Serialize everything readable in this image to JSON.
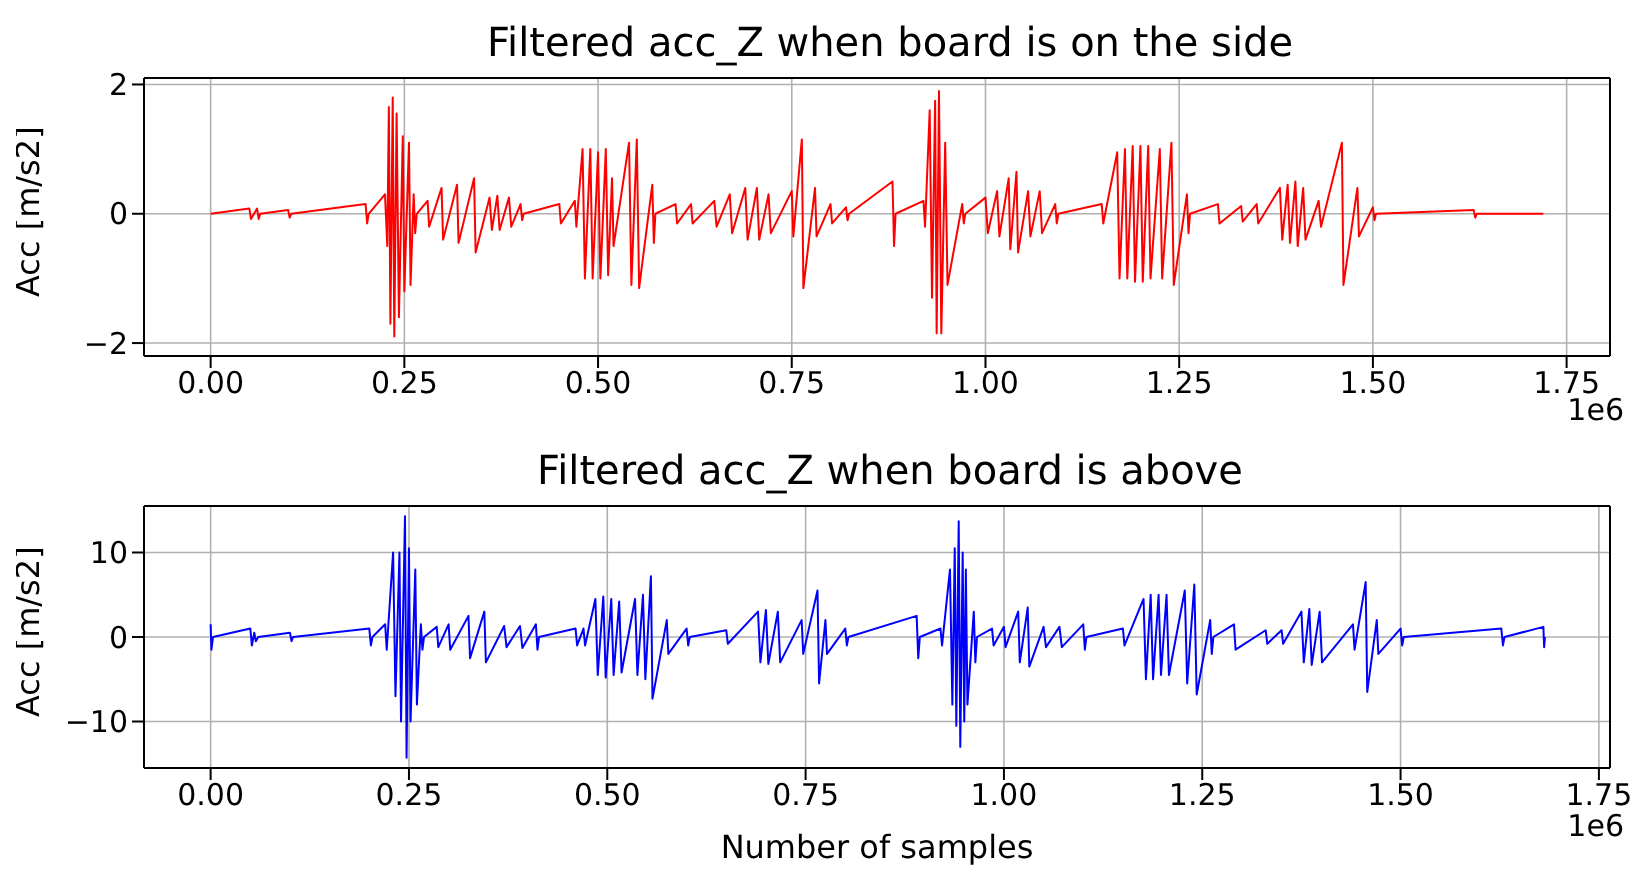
{
  "chart_data": [
    {
      "type": "line",
      "title": "Filtered acc_Z when board is on the side",
      "ylabel": "Acc [m/s2]",
      "annotations": [
        "1e6"
      ],
      "grid": true,
      "legend": false,
      "xlim": [
        -0.086,
        1.806
      ],
      "xticks": [
        {
          "value": 0,
          "label": "0.00"
        },
        {
          "value": 0.25,
          "label": "0.25"
        },
        {
          "value": 0.5,
          "label": "0.50"
        },
        {
          "value": 0.75,
          "label": "0.75"
        },
        {
          "value": 1,
          "label": "1.00"
        },
        {
          "value": 1.25,
          "label": "1.25"
        },
        {
          "value": 1.5,
          "label": "1.50"
        },
        {
          "value": 1.75,
          "label": "1.75"
        }
      ],
      "ylim": [
        -2.2,
        2.1
      ],
      "yticks": [
        {
          "value": -2,
          "label": "−2"
        },
        0,
        2
      ],
      "series": [
        {
          "color": "#ff0000",
          "x": [
            0,
            0.05,
            0.052,
            0.06,
            0.062,
            0.064,
            0.1,
            0.102,
            0.104,
            0.2,
            0.202,
            0.204,
            0.225,
            0.228,
            0.23,
            0.232,
            0.235,
            0.237,
            0.24,
            0.243,
            0.248,
            0.25,
            0.256,
            0.258,
            0.262,
            0.264,
            0.266,
            0.28,
            0.282,
            0.298,
            0.3,
            0.318,
            0.32,
            0.34,
            0.342,
            0.36,
            0.363,
            0.37,
            0.373,
            0.385,
            0.388,
            0.4,
            0.402,
            0.404,
            0.45,
            0.452,
            0.47,
            0.472,
            0.48,
            0.483,
            0.49,
            0.493,
            0.5,
            0.503,
            0.51,
            0.513,
            0.518,
            0.52,
            0.54,
            0.543,
            0.55,
            0.553,
            0.57,
            0.572,
            0.574,
            0.6,
            0.602,
            0.62,
            0.622,
            0.65,
            0.653,
            0.67,
            0.673,
            0.69,
            0.693,
            0.705,
            0.708,
            0.72,
            0.723,
            0.75,
            0.752,
            0.763,
            0.765,
            0.78,
            0.782,
            0.8,
            0.802,
            0.82,
            0.822,
            0.824,
            0.88,
            0.882,
            0.884,
            0.92,
            0.922,
            0.928,
            0.931,
            0.935,
            0.937,
            0.94,
            0.943,
            0.948,
            0.951,
            0.97,
            0.972,
            0.974,
            1.0,
            1.003,
            1.015,
            1.018,
            1.03,
            1.032,
            1.04,
            1.042,
            1.055,
            1.058,
            1.07,
            1.073,
            1.09,
            1.092,
            1.094,
            1.15,
            1.152,
            1.17,
            1.173,
            1.18,
            1.183,
            1.19,
            1.193,
            1.2,
            1.203,
            1.21,
            1.213,
            1.225,
            1.228,
            1.24,
            1.243,
            1.26,
            1.262,
            1.264,
            1.3,
            1.302,
            1.33,
            1.332,
            1.35,
            1.352,
            1.38,
            1.383,
            1.39,
            1.393,
            1.4,
            1.403,
            1.41,
            1.413,
            1.43,
            1.433,
            1.46,
            1.462,
            1.48,
            1.482,
            1.5,
            1.502,
            1.504,
            1.63,
            1.632,
            1.634,
            1.72
          ],
          "values": [
            0,
            0.08,
            -0.08,
            0.08,
            -0.08,
            0,
            0.06,
            -0.06,
            0,
            0.15,
            -0.15,
            0,
            0.3,
            -0.5,
            1.65,
            -1.7,
            1.8,
            -1.9,
            1.55,
            -1.6,
            1.2,
            -1.2,
            1.1,
            -1.1,
            0.3,
            -0.3,
            0,
            0.2,
            -0.2,
            0.4,
            -0.4,
            0.45,
            -0.45,
            0.55,
            -0.6,
            0.25,
            -0.25,
            0.28,
            -0.25,
            0.25,
            -0.2,
            0.15,
            -0.1,
            0,
            0.15,
            -0.15,
            0.2,
            -0.2,
            1.0,
            -1.0,
            1.0,
            -1.0,
            0.95,
            -1.0,
            1.0,
            -0.95,
            0.55,
            -0.5,
            1.1,
            -1.1,
            1.15,
            -1.15,
            0.45,
            -0.45,
            0,
            0.15,
            -0.15,
            0.15,
            -0.15,
            0.2,
            -0.2,
            0.3,
            -0.3,
            0.4,
            -0.4,
            0.4,
            -0.4,
            0.3,
            -0.3,
            0.35,
            -0.35,
            1.15,
            -1.15,
            0.4,
            -0.35,
            0.15,
            -0.15,
            0.1,
            -0.1,
            0,
            0.5,
            -0.5,
            0,
            0.2,
            -0.2,
            1.6,
            -1.3,
            1.75,
            -1.85,
            1.9,
            -1.85,
            1.1,
            -1.1,
            0.15,
            -0.15,
            0,
            0.25,
            -0.3,
            0.35,
            -0.35,
            0.55,
            -0.55,
            0.65,
            -0.6,
            0.35,
            -0.35,
            0.35,
            -0.3,
            0.15,
            -0.15,
            0,
            0.15,
            -0.15,
            0.95,
            -1.0,
            1.0,
            -1.0,
            1.05,
            -1.05,
            1.05,
            -1.05,
            1.05,
            -1.0,
            1.0,
            -1.0,
            1.1,
            -1.1,
            0.3,
            -0.3,
            0,
            0.15,
            -0.15,
            0.12,
            -0.12,
            0.15,
            -0.15,
            0.4,
            -0.4,
            0.45,
            -0.45,
            0.5,
            -0.5,
            0.4,
            -0.4,
            0.2,
            -0.2,
            1.1,
            -1.1,
            0.4,
            -0.35,
            0.1,
            -0.1,
            0,
            0.06,
            -0.06,
            0,
            0
          ]
        }
      ]
    },
    {
      "type": "line",
      "title": "Filtered acc_Z when board is above",
      "xlabel": "Number of samples",
      "ylabel": "Acc [m/s2]",
      "annotations": [
        "1e6"
      ],
      "grid": true,
      "legend": false,
      "xlim": [
        -0.084,
        1.764
      ],
      "xticks": [
        {
          "value": 0,
          "label": "0.00"
        },
        {
          "value": 0.25,
          "label": "0.25"
        },
        {
          "value": 0.5,
          "label": "0.50"
        },
        {
          "value": 0.75,
          "label": "0.75"
        },
        {
          "value": 1,
          "label": "1.00"
        },
        {
          "value": 1.25,
          "label": "1.25"
        },
        {
          "value": 1.5,
          "label": "1.50"
        },
        {
          "value": 1.75,
          "label": "1.75"
        }
      ],
      "ylim": [
        -15.5,
        15.5
      ],
      "yticks": [
        {
          "value": -10,
          "label": "−10"
        },
        0,
        10
      ],
      "series": [
        {
          "color": "#0000ff",
          "x": [
            0,
            0.001,
            0.003,
            0.05,
            0.052,
            0.055,
            0.057,
            0.06,
            0.1,
            0.102,
            0.104,
            0.2,
            0.202,
            0.204,
            0.22,
            0.222,
            0.23,
            0.233,
            0.238,
            0.24,
            0.245,
            0.247,
            0.25,
            0.252,
            0.258,
            0.26,
            0.265,
            0.267,
            0.269,
            0.285,
            0.287,
            0.3,
            0.302,
            0.325,
            0.327,
            0.345,
            0.347,
            0.37,
            0.373,
            0.39,
            0.393,
            0.41,
            0.412,
            0.414,
            0.46,
            0.462,
            0.47,
            0.472,
            0.485,
            0.488,
            0.495,
            0.498,
            0.505,
            0.508,
            0.515,
            0.518,
            0.535,
            0.538,
            0.545,
            0.548,
            0.555,
            0.557,
            0.575,
            0.577,
            0.6,
            0.602,
            0.604,
            0.65,
            0.652,
            0.69,
            0.693,
            0.7,
            0.703,
            0.715,
            0.718,
            0.745,
            0.747,
            0.765,
            0.767,
            0.775,
            0.777,
            0.8,
            0.802,
            0.804,
            0.89,
            0.892,
            0.894,
            0.92,
            0.922,
            0.932,
            0.935,
            0.938,
            0.94,
            0.943,
            0.945,
            0.948,
            0.95,
            0.952,
            0.954,
            0.962,
            0.964,
            0.966,
            0.985,
            0.987,
            1.0,
            1.002,
            1.018,
            1.02,
            1.03,
            1.032,
            1.05,
            1.053,
            1.07,
            1.073,
            1.1,
            1.102,
            1.104,
            1.15,
            1.152,
            1.176,
            1.179,
            1.185,
            1.188,
            1.195,
            1.198,
            1.205,
            1.208,
            1.228,
            1.231,
            1.24,
            1.243,
            1.26,
            1.262,
            1.264,
            1.29,
            1.292,
            1.33,
            1.332,
            1.35,
            1.352,
            1.375,
            1.378,
            1.385,
            1.388,
            1.398,
            1.401,
            1.44,
            1.442,
            1.456,
            1.458,
            1.47,
            1.472,
            1.5,
            1.502,
            1.504,
            1.627,
            1.629,
            1.631,
            1.68,
            1.681,
            1.682
          ],
          "values": [
            1.5,
            -1.5,
            0,
            1,
            -1,
            0.5,
            -0.5,
            0,
            0.5,
            -0.5,
            0,
            1,
            -1,
            0,
            1.5,
            -1.5,
            10,
            -7,
            10,
            -10,
            14.3,
            -14.3,
            10.5,
            -10,
            8,
            -8,
            1.5,
            -1.5,
            0,
            1.2,
            -1.2,
            1.5,
            -1.5,
            2.5,
            -2.5,
            3,
            -3,
            1.3,
            -1.2,
            1.3,
            -1.3,
            1.5,
            -1.5,
            0,
            1,
            -1,
            1,
            -1,
            4.5,
            -4.5,
            4.8,
            -4.8,
            4.5,
            -4.5,
            4.2,
            -4.2,
            4.5,
            -4.5,
            5,
            -5,
            7.2,
            -7.3,
            2,
            -2,
            1,
            -1,
            0,
            0.8,
            -0.8,
            3,
            -3,
            3.2,
            -3.2,
            3,
            -3,
            2,
            -2,
            5.5,
            -5.5,
            2,
            -2,
            1,
            -1,
            0,
            2.5,
            -2.5,
            0,
            1,
            -1,
            8,
            -8,
            10.5,
            -10.5,
            13.7,
            -13,
            10,
            -10,
            8,
            -8,
            3,
            -3,
            0,
            1,
            -1,
            1.2,
            -1.2,
            3,
            -3,
            3.5,
            -3.5,
            1.2,
            -1.2,
            1.2,
            -1.2,
            1.5,
            -1.5,
            0,
            1,
            -1,
            4.5,
            -5,
            5,
            -5,
            5,
            -4.5,
            5,
            -4.5,
            5.5,
            -5.5,
            6.2,
            -6.8,
            2,
            -2,
            0,
            1.5,
            -1.5,
            0.8,
            -0.8,
            0.8,
            -0.8,
            3,
            -3,
            3.3,
            -3.3,
            3,
            -3,
            1.5,
            -1.5,
            6.5,
            -6.5,
            2,
            -2,
            1,
            -1,
            0,
            1,
            -1,
            0,
            1.2,
            -1.2,
            0
          ]
        }
      ]
    }
  ]
}
